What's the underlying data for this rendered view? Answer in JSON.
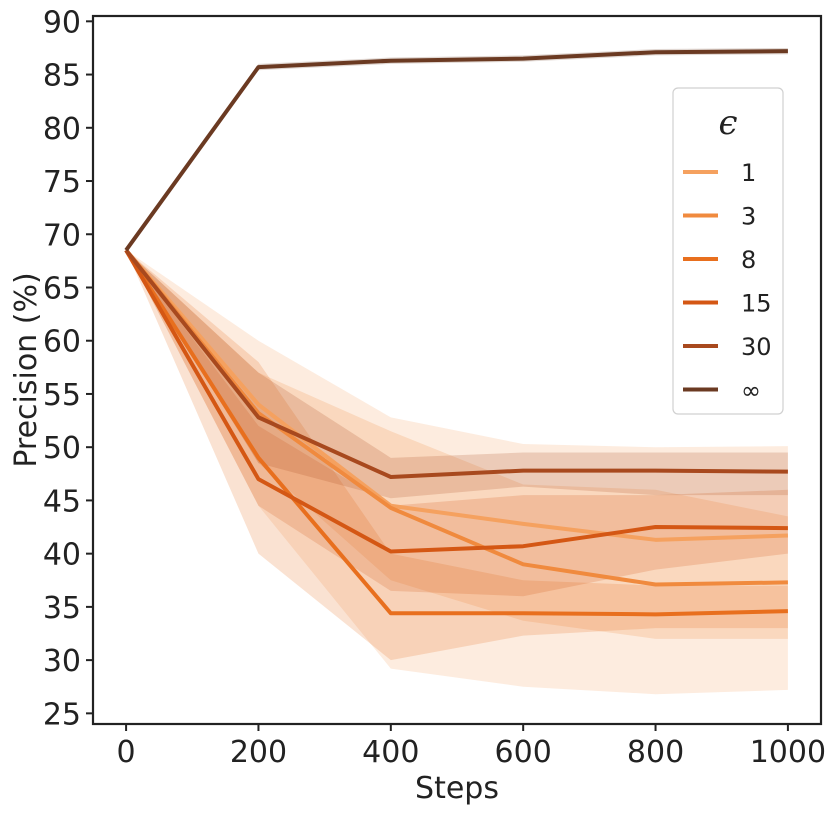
{
  "chart_data": {
    "type": "line",
    "title": "",
    "xlabel": "Steps",
    "ylabel": "Precision (%)",
    "xlim": [
      -50,
      1050
    ],
    "ylim": [
      24,
      90.5
    ],
    "x": [
      0,
      200,
      400,
      600,
      800,
      1000
    ],
    "xticks": [
      0,
      200,
      400,
      600,
      800,
      1000
    ],
    "yticks": [
      25,
      30,
      35,
      40,
      45,
      50,
      55,
      60,
      65,
      70,
      75,
      80,
      85,
      90
    ],
    "grid": false,
    "legend": {
      "title": "ϵ",
      "position": "right"
    },
    "series": [
      {
        "name": "1",
        "color": "#f5a15f",
        "values": [
          68.5,
          54.0,
          44.5,
          42.8,
          41.3,
          41.7
        ],
        "lower": [
          68.5,
          44.5,
          29.2,
          27.5,
          26.8,
          27.2
        ],
        "upper": [
          68.5,
          60.0,
          52.8,
          50.3,
          50.0,
          50.1
        ]
      },
      {
        "name": "3",
        "color": "#f08a3e",
        "values": [
          68.5,
          53.2,
          44.3,
          39.0,
          37.1,
          37.3
        ],
        "lower": [
          68.5,
          48.5,
          37.5,
          33.7,
          32.0,
          32.0
        ],
        "upper": [
          68.5,
          57.0,
          51.5,
          46.5,
          46.0,
          43.5
        ]
      },
      {
        "name": "8",
        "color": "#e86f1e",
        "values": [
          68.5,
          49.0,
          34.4,
          34.4,
          34.3,
          34.6
        ],
        "lower": [
          68.5,
          40.0,
          30.0,
          32.3,
          33.0,
          33.0
        ],
        "upper": [
          68.5,
          58.0,
          40.0,
          37.5,
          37.0,
          37.0
        ]
      },
      {
        "name": "15",
        "color": "#d45714",
        "values": [
          68.5,
          47.0,
          40.2,
          40.7,
          42.5,
          42.4
        ],
        "lower": [
          68.5,
          44.5,
          36.5,
          36.0,
          38.5,
          40.0
        ],
        "upper": [
          68.5,
          52.0,
          44.5,
          45.5,
          45.5,
          46.0
        ]
      },
      {
        "name": "30",
        "color": "#a8491e",
        "values": [
          68.5,
          52.8,
          47.2,
          47.8,
          47.8,
          47.7
        ],
        "lower": [
          68.5,
          48.5,
          45.2,
          46.3,
          45.5,
          45.5
        ],
        "upper": [
          68.5,
          57.0,
          49.0,
          49.5,
          49.5,
          49.5
        ]
      },
      {
        "name": "∞",
        "color": "#6b3a22",
        "values": [
          68.5,
          85.7,
          86.3,
          86.5,
          87.1,
          87.2
        ],
        "lower": [
          68.5,
          85.4,
          86.0,
          86.2,
          86.8,
          86.9
        ],
        "upper": [
          68.5,
          86.0,
          86.6,
          86.8,
          87.4,
          87.5
        ]
      }
    ]
  }
}
